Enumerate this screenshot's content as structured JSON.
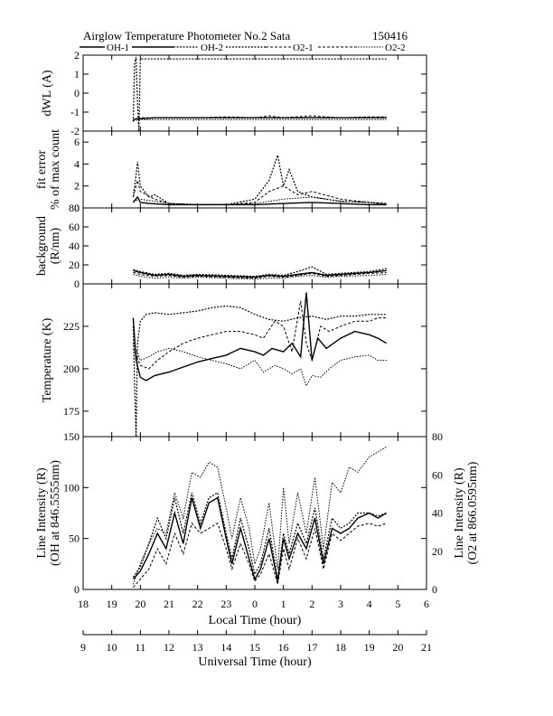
{
  "header": {
    "title": "Airglow Temperature Photometer No.2  Sata",
    "date": "150416"
  },
  "legend": [
    "OH-1",
    "OH-2",
    "O2-1",
    "O2-2"
  ],
  "x_axes": {
    "local": {
      "label": "Local Time (hour)",
      "ticks": [
        "18",
        "19",
        "20",
        "21",
        "22",
        "23",
        "0",
        "1",
        "2",
        "3",
        "4",
        "5",
        "6"
      ]
    },
    "universal": {
      "label": "Universal Time (hour)",
      "ticks": [
        "9",
        "10",
        "11",
        "12",
        "13",
        "14",
        "15",
        "16",
        "17",
        "18",
        "19",
        "20",
        "21"
      ]
    }
  },
  "chart_data": [
    {
      "type": "line",
      "panel": "dwl",
      "ylabel": "dWL (A)",
      "ylim": [
        -2,
        2
      ],
      "yticks": [
        "-2",
        "-1",
        "0",
        "1",
        "2"
      ],
      "series": [
        {
          "name": "OH-1",
          "x": [
            19.75,
            19.85,
            20.0,
            20.5,
            21,
            22,
            23,
            0,
            1,
            2,
            3,
            4,
            4.6
          ],
          "y": [
            -1.4,
            -1.35,
            -1.35,
            -1.3,
            -1.3,
            -1.3,
            -1.3,
            -1.3,
            -1.3,
            -1.3,
            -1.3,
            -1.3,
            -1.3
          ]
        },
        {
          "name": "OH-2",
          "x": [
            19.75,
            19.8,
            19.85,
            19.9,
            19.95,
            20.0,
            20.5,
            21,
            22,
            23,
            0,
            1,
            2,
            3,
            4,
            4.6
          ],
          "y": [
            -1.5,
            1.6,
            1.9,
            -0.5,
            -2.0,
            1.8,
            1.8,
            1.8,
            1.8,
            1.8,
            1.8,
            1.8,
            1.8,
            1.8,
            1.8,
            1.8
          ]
        },
        {
          "name": "O2-1",
          "x": [
            19.75,
            20.0,
            20.5,
            21,
            22,
            23,
            0,
            0.5,
            1,
            2,
            3,
            4,
            4.6
          ],
          "y": [
            -1.4,
            -1.3,
            -1.3,
            -1.3,
            -1.3,
            -1.25,
            -1.3,
            -1.2,
            -1.3,
            -1.2,
            -1.3,
            -1.25,
            -1.25
          ]
        },
        {
          "name": "O2-2",
          "x": [
            19.75,
            20.0,
            20.5,
            21,
            22,
            23,
            0,
            1,
            2,
            3,
            4,
            4.6
          ],
          "y": [
            -1.45,
            -1.4,
            -1.4,
            -1.4,
            -1.4,
            -1.4,
            -1.4,
            -1.4,
            -1.4,
            -1.4,
            -1.4,
            -1.4
          ]
        }
      ]
    },
    {
      "type": "line",
      "panel": "fit",
      "ylabel": "fit error",
      "ylabel2": "% of max count",
      "ylim": [
        0,
        7
      ],
      "yticks": [
        "0",
        "2",
        "4",
        "6"
      ],
      "series": [
        {
          "name": "OH-1",
          "x": [
            19.75,
            19.9,
            20.0,
            20.3,
            21,
            22,
            23,
            0,
            1,
            2,
            3,
            4,
            4.6
          ],
          "y": [
            0.5,
            1.0,
            0.5,
            0.4,
            0.3,
            0.3,
            0.3,
            0.3,
            0.4,
            0.5,
            0.4,
            0.3,
            0.3
          ]
        },
        {
          "name": "OH-2",
          "x": [
            19.75,
            19.85,
            19.9,
            20.0,
            20.3,
            20.5,
            21,
            22,
            23,
            0,
            0.5,
            0.8,
            1.0,
            1.2,
            1.5,
            2,
            3,
            4,
            4.6
          ],
          "y": [
            1.0,
            3.0,
            4.2,
            2.0,
            1.0,
            1.2,
            0.4,
            0.3,
            0.3,
            0.8,
            2.5,
            4.8,
            2.0,
            3.5,
            1.5,
            1.0,
            0.6,
            0.5,
            0.3
          ]
        },
        {
          "name": "O2-1",
          "x": [
            19.75,
            19.9,
            20.0,
            20.5,
            21,
            22,
            23,
            0,
            0.5,
            1,
            1.5,
            2,
            3,
            4,
            4.6
          ],
          "y": [
            1.0,
            2.5,
            1.5,
            0.8,
            0.4,
            0.3,
            0.3,
            0.5,
            1.5,
            2.0,
            1.2,
            1.5,
            0.8,
            0.5,
            0.4
          ]
        },
        {
          "name": "O2-2",
          "x": [
            19.75,
            20.0,
            20.5,
            21,
            22,
            23,
            0,
            1,
            2,
            3,
            4,
            4.6
          ],
          "y": [
            0.6,
            0.8,
            0.6,
            0.4,
            0.3,
            0.3,
            0.4,
            0.8,
            1.0,
            0.6,
            0.5,
            0.4
          ]
        }
      ]
    },
    {
      "type": "line",
      "panel": "background",
      "ylabel": "background",
      "ylabel2": "(R/nm)",
      "ylim": [
        0,
        80
      ],
      "yticks": [
        "0",
        "20",
        "40",
        "60",
        "80"
      ],
      "series": [
        {
          "name": "OH-1",
          "x": [
            19.75,
            20.0,
            20.5,
            21,
            21.5,
            22,
            23,
            0,
            0.5,
            1,
            1.5,
            2,
            2.5,
            3,
            4,
            4.6
          ],
          "y": [
            14,
            12,
            9,
            10,
            8,
            9,
            8,
            7,
            9,
            8,
            10,
            12,
            9,
            10,
            12,
            14
          ]
        },
        {
          "name": "OH-2",
          "x": [
            19.75,
            20.0,
            20.5,
            21,
            21.5,
            22,
            23,
            0,
            0.5,
            1,
            1.5,
            2,
            2.5,
            3,
            4,
            4.6
          ],
          "y": [
            15,
            13,
            10,
            11,
            9,
            10,
            9,
            8,
            10,
            9,
            13,
            18,
            10,
            11,
            13,
            16
          ]
        },
        {
          "name": "O2-1",
          "x": [
            19.75,
            20.0,
            20.5,
            21,
            21.5,
            22,
            23,
            0,
            0.5,
            1,
            1.5,
            2,
            2.5,
            3,
            4,
            4.6
          ],
          "y": [
            12,
            10,
            8,
            9,
            7,
            8,
            7,
            6,
            8,
            7,
            9,
            11,
            8,
            9,
            11,
            12
          ]
        },
        {
          "name": "O2-2",
          "x": [
            19.75,
            20.0,
            20.5,
            21,
            21.5,
            22,
            23,
            0,
            0.5,
            1,
            1.5,
            2,
            2.5,
            3,
            4,
            4.6
          ],
          "y": [
            10,
            8,
            6,
            7,
            6,
            7,
            6,
            5,
            6,
            6,
            8,
            9,
            7,
            8,
            9,
            10
          ]
        }
      ]
    },
    {
      "type": "line",
      "panel": "temperature",
      "ylabel": "Temperature (K)",
      "ylim": [
        160,
        250
      ],
      "yticks": [
        "175",
        "200",
        "225"
      ],
      "series": [
        {
          "name": "OH-1",
          "x": [
            19.75,
            19.85,
            20.0,
            20.2,
            20.5,
            21,
            21.5,
            22,
            22.5,
            23,
            23.5,
            0,
            0.3,
            0.6,
            1,
            1.3,
            1.6,
            1.8,
            2.0,
            2.2,
            2.5,
            3,
            3.5,
            4,
            4.3,
            4.6
          ],
          "y": [
            230,
            205,
            195,
            193,
            196,
            198,
            201,
            204,
            206,
            208,
            212,
            210,
            208,
            212,
            210,
            215,
            207,
            245,
            205,
            218,
            212,
            218,
            222,
            220,
            218,
            215
          ]
        },
        {
          "name": "OH-2",
          "x": [
            19.75,
            19.8,
            19.85,
            19.9,
            20.0,
            20.2,
            20.5,
            21,
            21.5,
            22,
            22.5,
            23,
            23.5,
            0,
            0.5,
            1,
            1.5,
            2,
            2.5,
            3,
            3.5,
            4,
            4.6
          ],
          "y": [
            225,
            190,
            160,
            215,
            228,
            232,
            233,
            232,
            233,
            234,
            236,
            237,
            236,
            232,
            229,
            228,
            230,
            231,
            229,
            231,
            231,
            232,
            232
          ]
        },
        {
          "name": "O2-1",
          "x": [
            19.75,
            20.0,
            20.3,
            20.6,
            21,
            21.5,
            22,
            22.5,
            23,
            23.5,
            0,
            0.3,
            0.7,
            1,
            1.3,
            1.6,
            1.8,
            2.0,
            2.3,
            2.6,
            3,
            3.5,
            4,
            4.3,
            4.6
          ],
          "y": [
            212,
            202,
            200,
            205,
            210,
            215,
            218,
            220,
            222,
            222,
            220,
            218,
            228,
            225,
            210,
            240,
            215,
            205,
            225,
            222,
            225,
            228,
            228,
            230,
            230
          ]
        },
        {
          "name": "O2-2",
          "x": [
            19.75,
            20.0,
            20.3,
            20.6,
            21,
            21.5,
            22,
            22.5,
            23,
            23.5,
            0,
            0.3,
            0.7,
            1,
            1.3,
            1.6,
            1.8,
            2.0,
            2.3,
            2.6,
            3,
            3.5,
            4,
            4.3,
            4.6
          ],
          "y": [
            215,
            205,
            207,
            210,
            212,
            210,
            207,
            205,
            203,
            200,
            205,
            198,
            202,
            200,
            197,
            200,
            190,
            196,
            195,
            200,
            205,
            207,
            208,
            205,
            205
          ]
        }
      ]
    },
    {
      "type": "line",
      "panel": "intensity",
      "ylabel": "Line Intensity (R)",
      "ylabel2": "(OH at 846.5555nm)",
      "ylim": [
        0,
        150
      ],
      "yticks": [
        "0",
        "50",
        "100",
        "150"
      ],
      "y2label": "Line Intensity (R)",
      "y2label2": "(O2 at 866.0595nm)",
      "y2lim": [
        0,
        80
      ],
      "y2ticks": [
        "0",
        "20",
        "40",
        "60",
        "80"
      ],
      "series": [
        {
          "name": "OH-1",
          "x": [
            19.75,
            20.0,
            20.3,
            20.6,
            20.9,
            21.2,
            21.5,
            21.8,
            22.1,
            22.4,
            22.7,
            23,
            23.2,
            23.5,
            23.8,
            0,
            0.2,
            0.5,
            0.8,
            1,
            1.2,
            1.5,
            1.8,
            2.1,
            2.4,
            2.7,
            3,
            3.3,
            3.6,
            4,
            4.3,
            4.6
          ],
          "y": [
            10,
            18,
            35,
            55,
            40,
            75,
            45,
            90,
            60,
            85,
            90,
            50,
            25,
            60,
            30,
            10,
            20,
            50,
            8,
            50,
            30,
            55,
            40,
            70,
            25,
            60,
            55,
            60,
            70,
            75,
            70,
            75
          ]
        },
        {
          "name": "OH-2",
          "x": [
            19.75,
            20.0,
            20.3,
            20.6,
            20.9,
            21.2,
            21.5,
            21.8,
            22.1,
            22.4,
            22.7,
            23,
            23.2,
            23.5,
            23.8,
            0,
            0.2,
            0.5,
            0.8,
            1,
            1.2,
            1.5,
            1.8,
            2.1,
            2.4,
            2.7,
            3,
            3.3,
            3.6,
            4,
            4.3,
            4.6
          ],
          "y": [
            12,
            22,
            45,
            70,
            50,
            90,
            55,
            95,
            65,
            90,
            95,
            55,
            30,
            70,
            40,
            15,
            25,
            60,
            10,
            55,
            35,
            65,
            45,
            80,
            30,
            70,
            60,
            65,
            75,
            75,
            72,
            75
          ]
        },
        {
          "name": "O2-1",
          "x": [
            19.75,
            20.0,
            20.3,
            20.6,
            20.9,
            21.2,
            21.5,
            21.8,
            22.1,
            22.4,
            22.7,
            23,
            23.2,
            23.5,
            23.8,
            0,
            0.2,
            0.5,
            0.8,
            1,
            1.2,
            1.5,
            1.8,
            2.1,
            2.4,
            2.7,
            3,
            3.3,
            3.6,
            4,
            4.3,
            4.6
          ],
          "y": [
            2,
            10,
            20,
            40,
            25,
            55,
            35,
            65,
            55,
            60,
            65,
            40,
            20,
            45,
            25,
            8,
            15,
            35,
            5,
            40,
            20,
            50,
            30,
            60,
            20,
            55,
            48,
            55,
            62,
            65,
            62,
            65
          ]
        },
        {
          "name": "O2-2",
          "x": [
            19.75,
            20.0,
            20.3,
            20.6,
            20.9,
            21.2,
            21.5,
            21.8,
            22.1,
            22.4,
            22.7,
            23,
            23.2,
            23.5,
            23.8,
            0,
            0.2,
            0.5,
            0.8,
            1,
            1.2,
            1.5,
            1.8,
            2.1,
            2.4,
            2.7,
            3,
            3.3,
            3.6,
            4,
            4.3,
            4.6
          ],
          "y": [
            5,
            25,
            45,
            60,
            55,
            95,
            70,
            115,
            110,
            125,
            120,
            80,
            50,
            90,
            60,
            25,
            40,
            85,
            20,
            100,
            45,
            95,
            55,
            110,
            40,
            105,
            95,
            120,
            115,
            130,
            135,
            140
          ]
        }
      ]
    }
  ]
}
